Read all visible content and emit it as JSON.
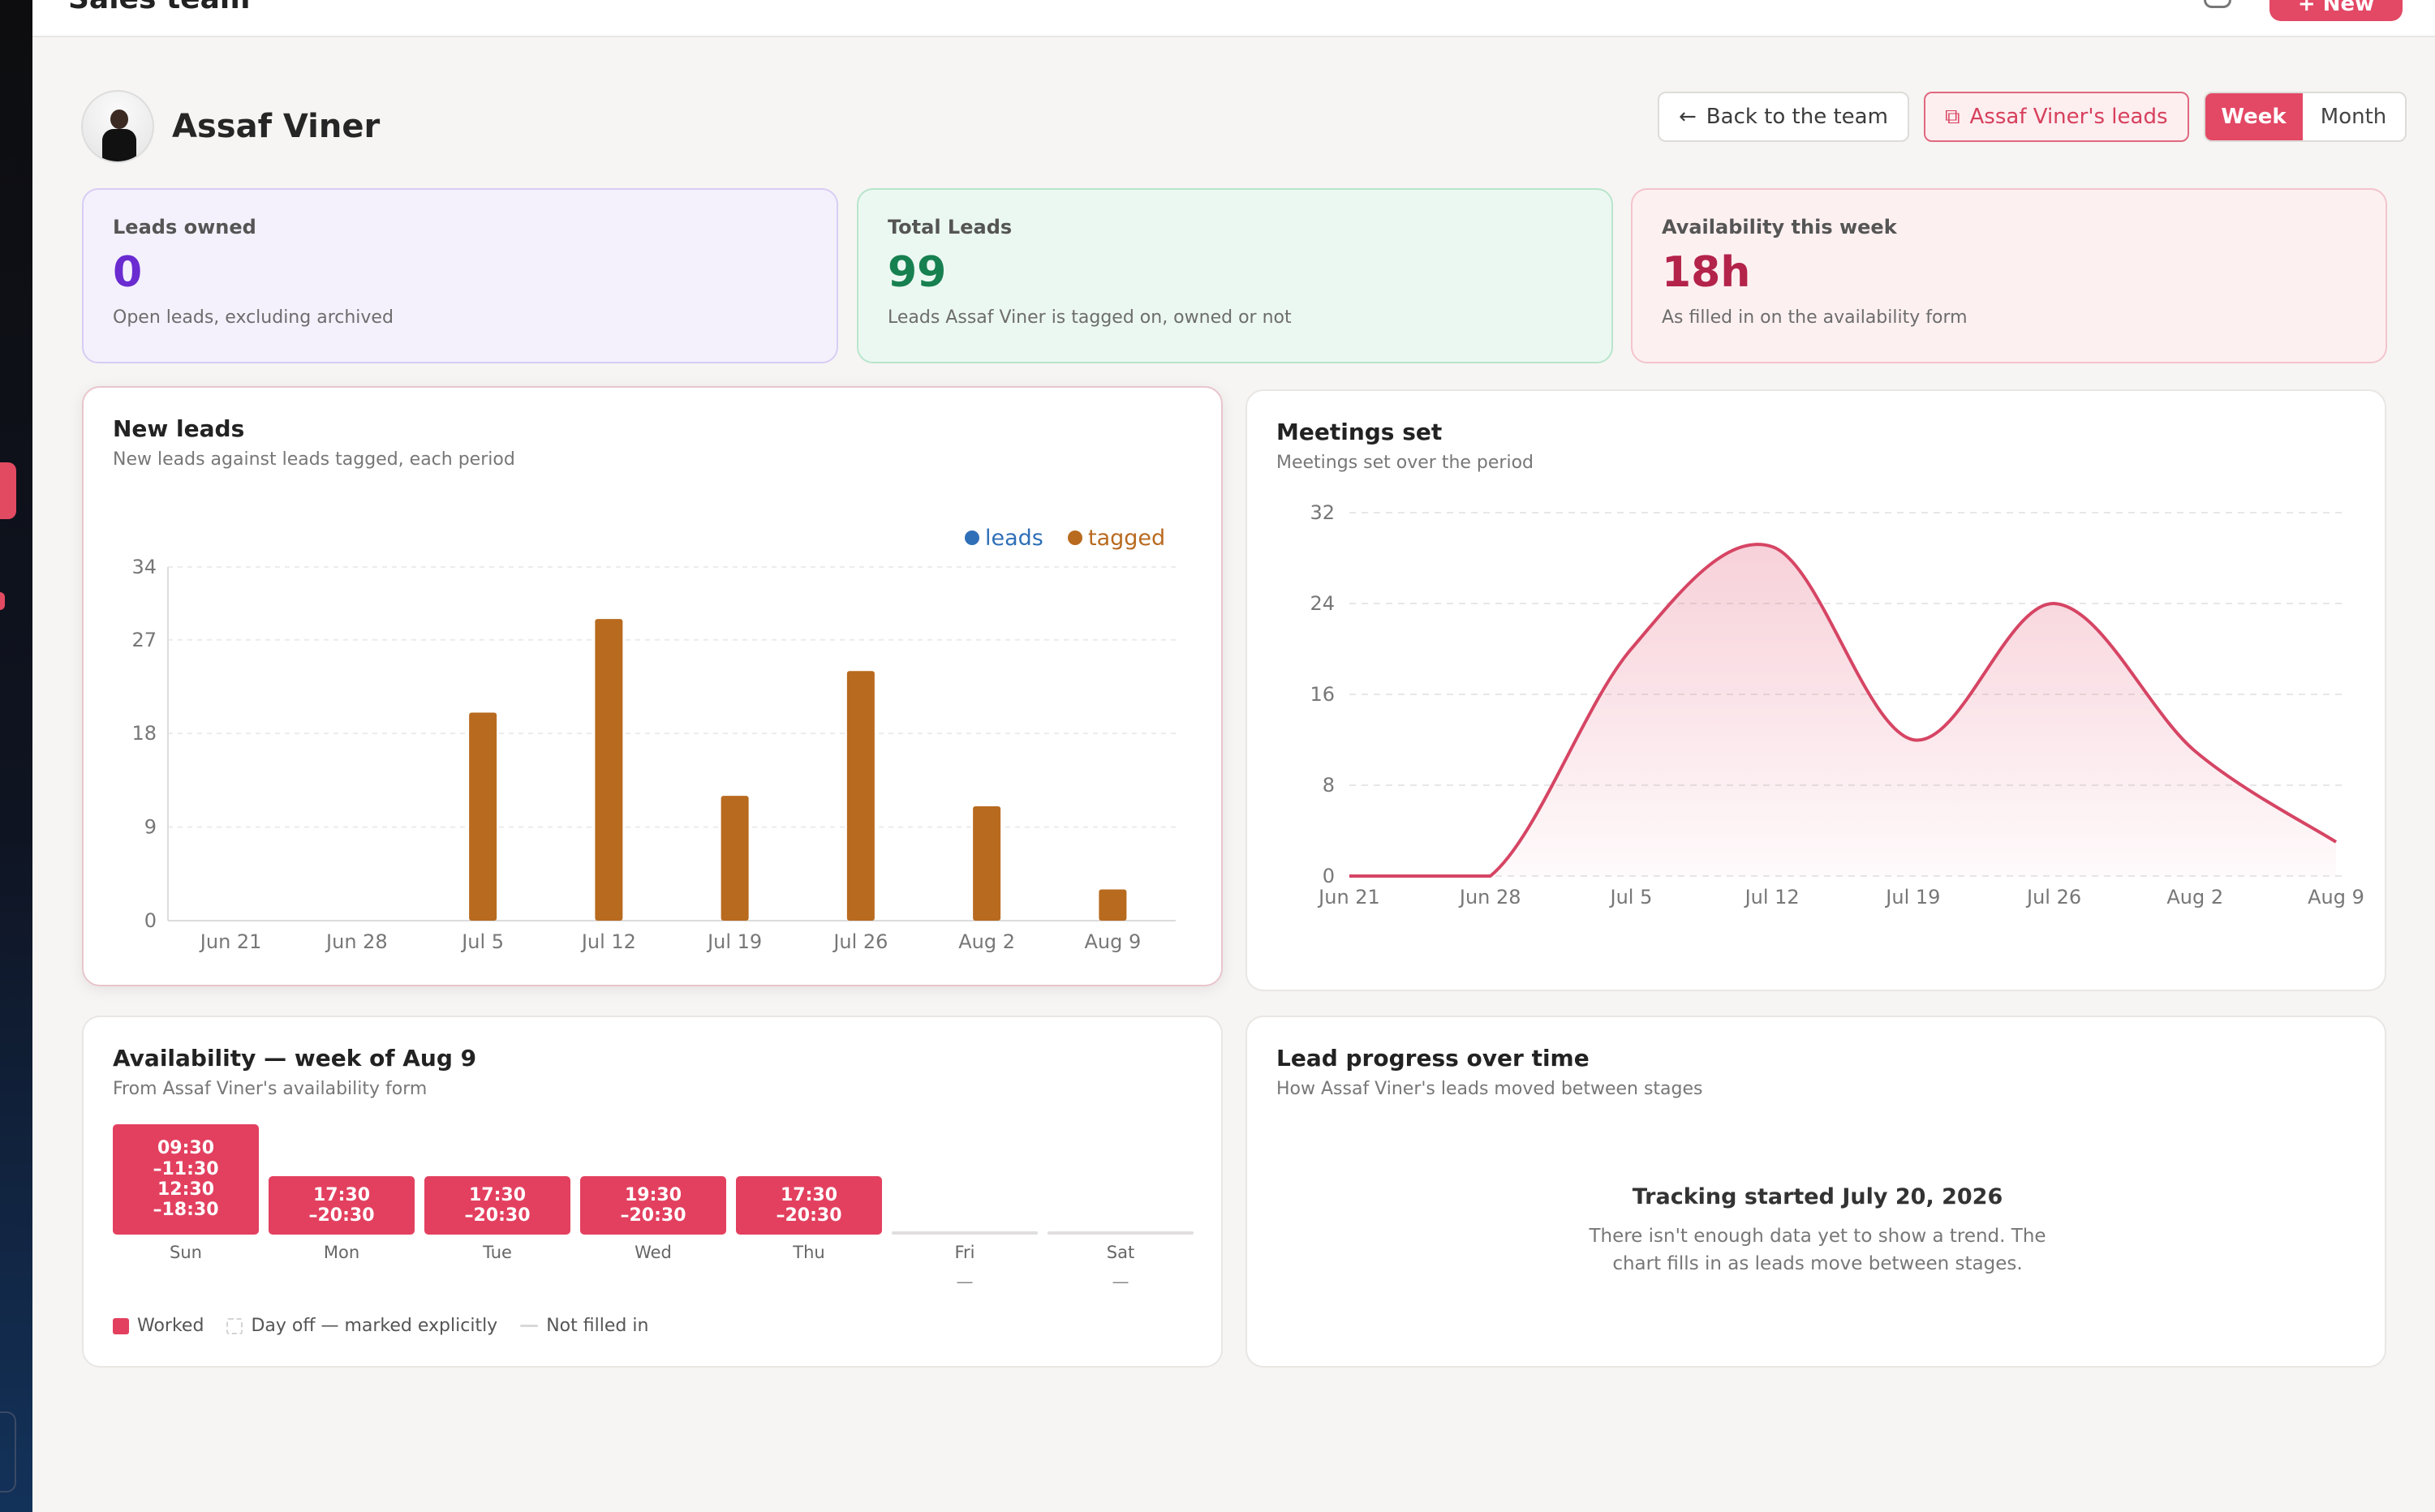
{
  "header": {
    "app_title": "Sales team",
    "new_button": "+ New"
  },
  "profile": {
    "name": "Assaf Viner"
  },
  "actions": {
    "back_label": "Back to the team",
    "back_icon": "arrow-left-icon",
    "leads_label": "Assaf Viner's leads",
    "leads_icon": "external-link-icon",
    "period_options": [
      "Week",
      "Month"
    ],
    "period_selected": "Week"
  },
  "stats": [
    {
      "label": "Leads owned",
      "value": "0",
      "sub": "Open leads, excluding archived",
      "color": "#6a2bd0"
    },
    {
      "label": "Total Leads",
      "value": "99",
      "sub": "Leads Assaf Viner is tagged on, owned or not",
      "color": "#178050"
    },
    {
      "label": "Availability this week",
      "value": "18h",
      "sub": "As filled in on the availability form",
      "color": "#b3234a"
    }
  ],
  "new_leads": {
    "title": "New leads",
    "subtitle": "New leads against leads tagged, each period"
  },
  "meetings": {
    "title": "Meetings set",
    "subtitle": "Meetings set over the period"
  },
  "chart_data": [
    {
      "type": "bar",
      "categories": [
        "Jun 21",
        "Jun 28",
        "Jul 5",
        "Jul 12",
        "Jul 19",
        "Jul 26",
        "Aug 2",
        "Aug 9"
      ],
      "series": [
        {
          "name": "leads",
          "color": "#2f6fb7",
          "values": [
            0,
            0,
            0,
            0,
            0,
            0,
            0,
            0
          ]
        },
        {
          "name": "tagged",
          "color": "#b86a1f",
          "values": [
            0,
            0,
            20,
            29,
            12,
            24,
            11,
            3
          ]
        }
      ],
      "yticks": [
        0,
        9,
        18,
        27,
        34
      ],
      "ylim": [
        0,
        34
      ],
      "grid": true,
      "legend": "top-right"
    },
    {
      "type": "area",
      "x": [
        "Jun 21",
        "Jun 28",
        "Jul 5",
        "Jul 12",
        "Jul 19",
        "Jul 26",
        "Aug 2",
        "Aug 9"
      ],
      "series": [
        {
          "color": "#d64564",
          "values": [
            0,
            0,
            20,
            29,
            12,
            24,
            11,
            3
          ]
        }
      ],
      "yticks": [
        0,
        8,
        16,
        24,
        32
      ],
      "ylim": [
        0,
        32
      ],
      "grid": true
    }
  ],
  "availability": {
    "title": "Availability — week of Aug 9",
    "subtitle": "From Assaf Viner's availability form",
    "days": [
      {
        "day": "Sun",
        "lines": [
          "09:30",
          "–11:30",
          "12:30",
          "–18:30"
        ],
        "empty": false,
        "dash": ""
      },
      {
        "day": "Mon",
        "lines": [
          "17:30",
          "–20:30"
        ],
        "empty": false,
        "dash": ""
      },
      {
        "day": "Tue",
        "lines": [
          "17:30",
          "–20:30"
        ],
        "empty": false,
        "dash": ""
      },
      {
        "day": "Wed",
        "lines": [
          "19:30",
          "–20:30"
        ],
        "empty": false,
        "dash": ""
      },
      {
        "day": "Thu",
        "lines": [
          "17:30",
          "–20:30"
        ],
        "empty": false,
        "dash": ""
      },
      {
        "day": "Fri",
        "lines": [],
        "empty": true,
        "dash": "—"
      },
      {
        "day": "Sat",
        "lines": [],
        "empty": true,
        "dash": "—"
      }
    ],
    "legend": [
      "Worked",
      "Day off — marked explicitly",
      "Not filled in"
    ]
  },
  "progress": {
    "title": "Lead progress over time",
    "subtitle": "How Assaf Viner's leads moved between stages",
    "message_title": "Tracking started July 20, 2026",
    "message_line1": "There isn't enough data yet to show a trend. The",
    "message_line2": "chart fills in as leads move between stages."
  }
}
